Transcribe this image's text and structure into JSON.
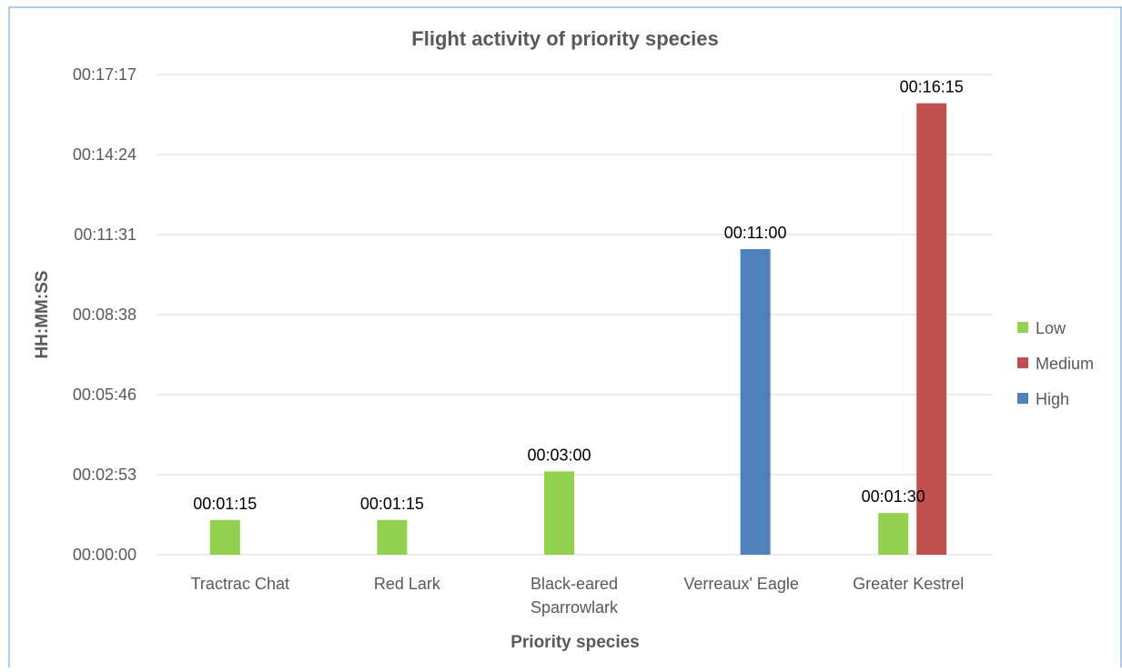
{
  "chart_data": {
    "type": "bar",
    "title": "Flight activity of priority species",
    "xlabel": "Priority species",
    "ylabel": "HH:MM:SS",
    "categories": [
      [
        "Tractrac Chat"
      ],
      [
        "Red Lark"
      ],
      [
        "Black-eared",
        "Sparrowlark"
      ],
      [
        "Verreaux' Eagle"
      ],
      [
        "Greater Kestrel"
      ]
    ],
    "y_ticks": [
      "00:00:00",
      "00:02:53",
      "00:05:46",
      "00:08:38",
      "00:11:31",
      "00:14:24",
      "00:17:17"
    ],
    "ylim_seconds": [
      0,
      1037
    ],
    "grid": true,
    "legend_position": "right",
    "series": [
      {
        "name": "Low",
        "color": "#92d050",
        "values_seconds": [
          75,
          75,
          180,
          null,
          90
        ],
        "labels": [
          "00:01:15",
          "00:01:15",
          "00:03:00",
          null,
          "00:01:30"
        ]
      },
      {
        "name": "Medium",
        "color": "#c0504d",
        "values_seconds": [
          null,
          null,
          null,
          null,
          975
        ],
        "labels": [
          null,
          null,
          null,
          null,
          "00:16:15"
        ]
      },
      {
        "name": "High",
        "color": "#4f81bd",
        "values_seconds": [
          null,
          null,
          null,
          660,
          null
        ],
        "labels": [
          null,
          null,
          null,
          "00:11:00",
          null
        ]
      }
    ]
  }
}
